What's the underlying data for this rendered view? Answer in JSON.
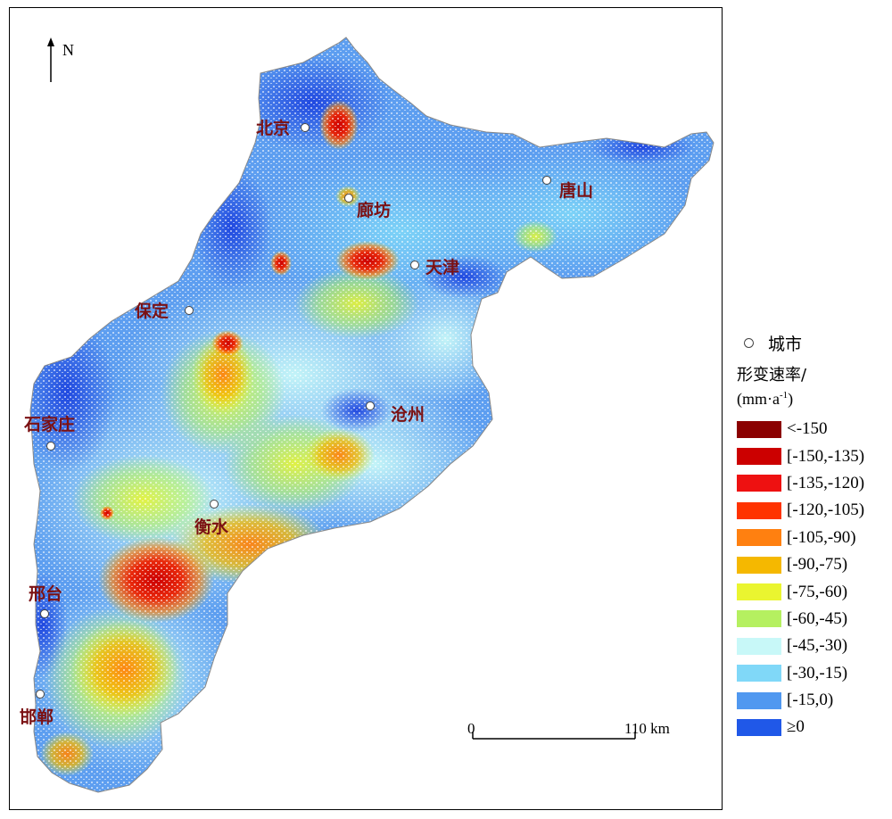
{
  "north": {
    "label": "N"
  },
  "cities": [
    {
      "name": "北京",
      "dot": [
        342,
        143
      ],
      "label": [
        287,
        150
      ]
    },
    {
      "name": "廊坊",
      "dot": [
        391,
        222
      ],
      "label": [
        400,
        242
      ]
    },
    {
      "name": "唐山",
      "dot": [
        613,
        202
      ],
      "label": [
        627,
        220
      ]
    },
    {
      "name": "天津",
      "dot": [
        465,
        297
      ],
      "label": [
        477,
        306
      ]
    },
    {
      "name": "保定",
      "dot": [
        212,
        348
      ],
      "label": [
        151,
        355
      ]
    },
    {
      "name": "沧州",
      "dot": [
        415,
        455
      ],
      "label": [
        438,
        471
      ]
    },
    {
      "name": "石家庄",
      "dot": [
        57,
        500
      ],
      "label": [
        27,
        482
      ]
    },
    {
      "name": "衡水",
      "dot": [
        240,
        565
      ],
      "label": [
        218,
        597
      ]
    },
    {
      "name": "邢台",
      "dot": [
        50,
        688
      ],
      "label": [
        32,
        672
      ]
    },
    {
      "name": "邯郸",
      "dot": [
        45,
        778
      ],
      "label": [
        22,
        810
      ]
    }
  ],
  "scale_bar": {
    "start_label": "0",
    "end_label": "110 km"
  },
  "legend": {
    "city_label": "城市",
    "title_line1": "形变速率/",
    "title_unit": "(mm·a",
    "title_exp": "-1",
    "title_close": ")",
    "items": [
      {
        "label": "<-150",
        "color": "#8b0000"
      },
      {
        "label": "[-150,-135)",
        "color": "#cc0000"
      },
      {
        "label": "[-135,-120)",
        "color": "#ee1111"
      },
      {
        "label": "[-120,-105)",
        "color": "#ff3300"
      },
      {
        "label": "[-105,-90)",
        "color": "#ff8010"
      },
      {
        "label": "[-90,-75)",
        "color": "#f5b800"
      },
      {
        "label": "[-75,-60)",
        "color": "#eaf530"
      },
      {
        "label": "[-60,-45)",
        "color": "#b5f060"
      },
      {
        "label": "[-45,-30)",
        "color": "#c8f8f8"
      },
      {
        "label": "[-30,-15)",
        "color": "#80d8f8"
      },
      {
        "label": "[-15,0)",
        "color": "#5098f0"
      },
      {
        "label": "≥0",
        "color": "#2058e8"
      }
    ]
  }
}
